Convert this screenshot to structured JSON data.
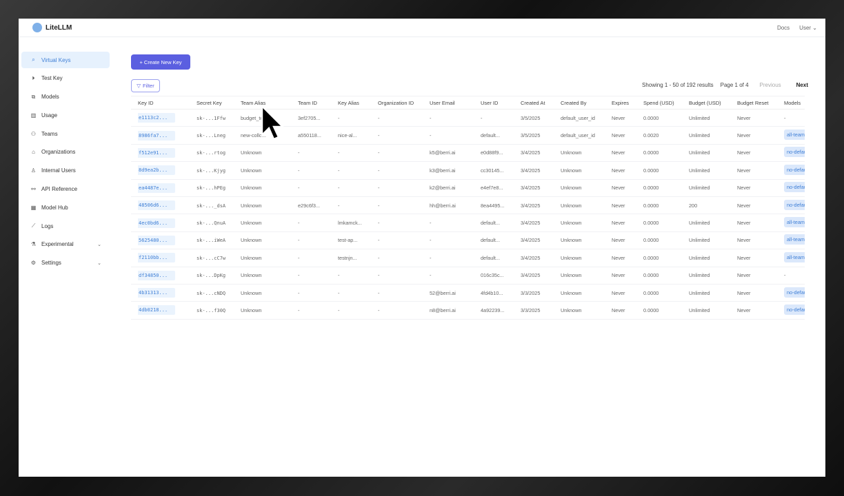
{
  "header": {
    "brand": "LiteLLM",
    "docs": "Docs",
    "user": "User"
  },
  "sidebar": {
    "items": [
      {
        "label": "Virtual Keys",
        "icon": "search-icon",
        "active": true
      },
      {
        "label": "Test Key",
        "icon": "play-circle-icon"
      },
      {
        "label": "Models",
        "icon": "blocks-icon"
      },
      {
        "label": "Usage",
        "icon": "bar-chart-icon"
      },
      {
        "label": "Teams",
        "icon": "team-icon"
      },
      {
        "label": "Organizations",
        "icon": "bank-icon"
      },
      {
        "label": "Internal Users",
        "icon": "user-icon"
      },
      {
        "label": "API Reference",
        "icon": "link-icon"
      },
      {
        "label": "Model Hub",
        "icon": "grid-icon"
      },
      {
        "label": "Logs",
        "icon": "line-chart-icon"
      },
      {
        "label": "Experimental",
        "icon": "flask-icon",
        "expandable": true
      },
      {
        "label": "Settings",
        "icon": "gear-icon",
        "expandable": true
      }
    ]
  },
  "toolbar": {
    "create_label": "+ Create New Key",
    "filter_label": "Filter"
  },
  "pagination": {
    "showing": "Showing 1 - 50 of 192 results",
    "page": "Page 1 of 4",
    "previous": "Previous",
    "next": "Next"
  },
  "colors": {
    "accent": "#5b5fe0",
    "key_link": "#3f7fd6"
  },
  "table": {
    "columns": [
      "Key ID",
      "Secret Key",
      "Team Alias",
      "Team ID",
      "Key Alias",
      "Organization ID",
      "User Email",
      "User ID",
      "Created At",
      "Created By",
      "Expires",
      "Spend (USD)",
      "Budget (USD)",
      "Budget Reset",
      "Models"
    ],
    "rows": [
      [
        "e1113c2...",
        "sk-...1Ffw",
        "budget_team",
        "3ef2705...",
        "-",
        "-",
        "-",
        "-",
        "3/5/2025",
        "default_user_id",
        "Never",
        "0.0000",
        "Unlimited",
        "Never",
        "-"
      ],
      [
        "8986fa7...",
        "sk-...Lneg",
        "new-collo...",
        "a550118...",
        "nice-al...",
        "-",
        "-",
        "default...",
        "3/5/2025",
        "default_user_id",
        "Never",
        "0.0020",
        "Unlimited",
        "Never",
        "all-team-models"
      ],
      [
        "f512e91...",
        "sk-...rtog",
        "Unknown",
        "-",
        "-",
        "-",
        "k5@berri.ai",
        "e0d88f9...",
        "3/4/2025",
        "Unknown",
        "Never",
        "0.0000",
        "Unlimited",
        "Never",
        "no-default-models"
      ],
      [
        "8d9ea2b...",
        "sk-...Kjyg",
        "Unknown",
        "-",
        "-",
        "-",
        "k3@berri.ai",
        "cc30145...",
        "3/4/2025",
        "Unknown",
        "Never",
        "0.0000",
        "Unlimited",
        "Never",
        "no-default-models"
      ],
      [
        "ea4487e...",
        "sk-...hPEg",
        "Unknown",
        "-",
        "-",
        "-",
        "k2@berri.ai",
        "e4ef7e8...",
        "3/4/2025",
        "Unknown",
        "Never",
        "0.0000",
        "Unlimited",
        "Never",
        "no-default-models"
      ],
      [
        "48506d6...",
        "sk-..._dsA",
        "Unknown",
        "e29c6f3...",
        "-",
        "-",
        "hh@berri.ai",
        "8ea4495...",
        "3/4/2025",
        "Unknown",
        "Never",
        "0.0000",
        "200",
        "Never",
        "no-default-models"
      ],
      [
        "4ec0bd6...",
        "sk-...QnuA",
        "Unknown",
        "-",
        "lmkamck...",
        "-",
        "-",
        "default...",
        "3/4/2025",
        "Unknown",
        "Never",
        "0.0000",
        "Unlimited",
        "Never",
        "all-team-models"
      ],
      [
        "5625480...",
        "sk-...iWeA",
        "Unknown",
        "-",
        "test-ap...",
        "-",
        "-",
        "default...",
        "3/4/2025",
        "Unknown",
        "Never",
        "0.0000",
        "Unlimited",
        "Never",
        "all-team-models"
      ],
      [
        "f2110bb...",
        "sk-...cC7w",
        "Unknown",
        "-",
        "testnjn...",
        "-",
        "-",
        "default...",
        "3/4/2025",
        "Unknown",
        "Never",
        "0.0000",
        "Unlimited",
        "Never",
        "all-team-models"
      ],
      [
        "df34850...",
        "sk-...DpKg",
        "Unknown",
        "-",
        "-",
        "-",
        "-",
        "016c35c...",
        "3/4/2025",
        "Unknown",
        "Never",
        "0.0000",
        "Unlimited",
        "Never",
        "-"
      ],
      [
        "4b31313...",
        "sk-...cNDQ",
        "Unknown",
        "-",
        "-",
        "-",
        "52@berri.ai",
        "4fd4b10...",
        "3/3/2025",
        "Unknown",
        "Never",
        "0.0000",
        "Unlimited",
        "Never",
        "no-default-models"
      ],
      [
        "4db0218...",
        "sk-...f30Q",
        "Unknown",
        "-",
        "-",
        "-",
        "n8@berri.ai",
        "4a92239...",
        "3/3/2025",
        "Unknown",
        "Never",
        "0.0000",
        "Unlimited",
        "Never",
        "no-default-models"
      ]
    ]
  }
}
